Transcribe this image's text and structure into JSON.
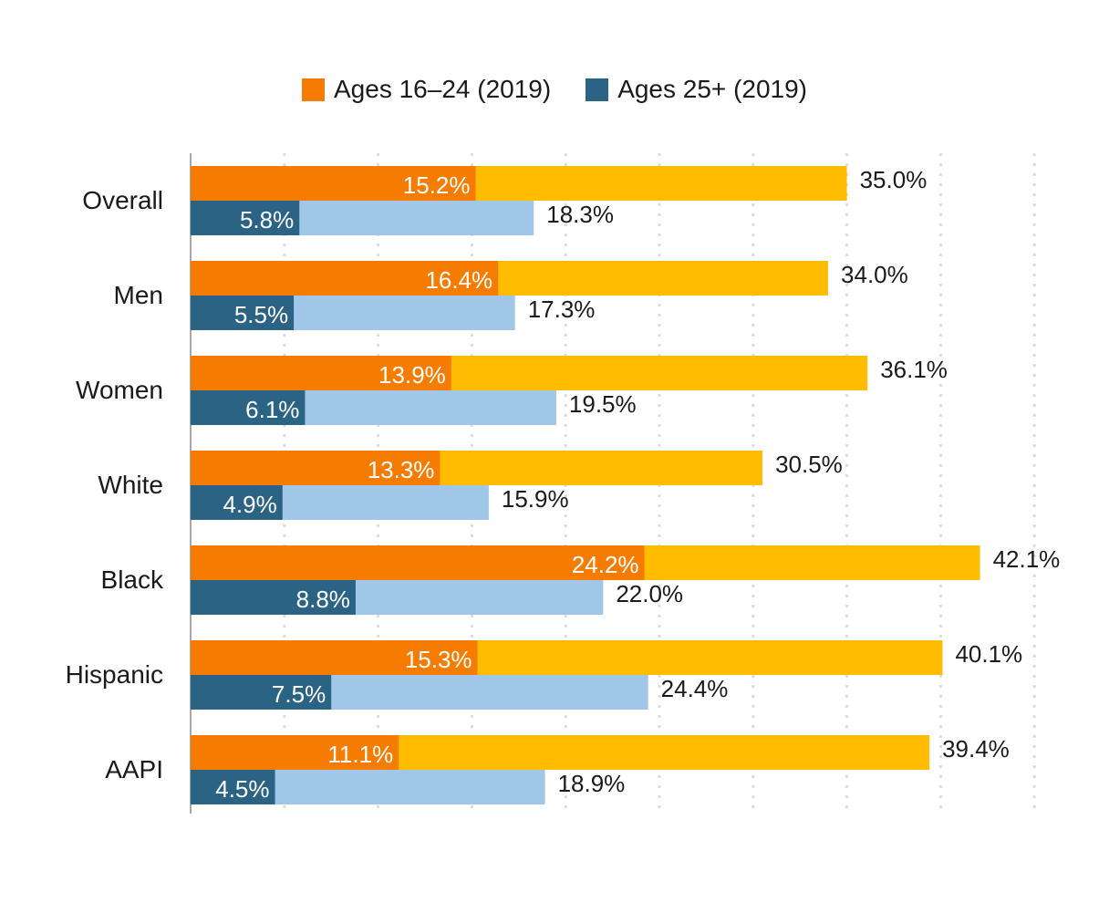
{
  "chart_data": {
    "type": "bar",
    "orientation": "horizontal",
    "categories": [
      "Overall",
      "Men",
      "Women",
      "White",
      "Black",
      "Hispanic",
      "AAPI"
    ],
    "series": [
      {
        "name": "Ages 16–24 (2019)",
        "color": "#f57c00",
        "values": [
          15.2,
          16.4,
          13.9,
          13.3,
          24.2,
          15.3,
          11.1
        ],
        "labels": [
          "15.2%",
          "16.4%",
          "13.9%",
          "13.3%",
          "24.2%",
          "15.3%",
          "11.1%"
        ]
      },
      {
        "color": "#ffbc00",
        "values": [
          35.0,
          34.0,
          36.1,
          30.5,
          42.1,
          40.1,
          39.4
        ],
        "labels": [
          "35.0%",
          "34.0%",
          "36.1%",
          "30.5%",
          "42.1%",
          "40.1%",
          "39.4%"
        ]
      },
      {
        "name": "Ages 25+ (2019)",
        "color": "#2a6384",
        "values": [
          5.8,
          5.5,
          6.1,
          4.9,
          8.8,
          7.5,
          4.5
        ],
        "labels": [
          "5.8%",
          "5.5%",
          "6.1%",
          "4.9%",
          "8.8%",
          "7.5%",
          "4.5%"
        ]
      },
      {
        "color": "#a0c6e8",
        "values": [
          18.3,
          17.3,
          19.5,
          15.9,
          22.0,
          24.4,
          18.9
        ],
        "labels": [
          "18.3%",
          "17.3%",
          "19.5%",
          "15.9%",
          "22.0%",
          "24.4%",
          "18.9%"
        ]
      }
    ],
    "xlim": [
      0,
      45
    ],
    "gridlines": [
      5,
      10,
      15,
      20,
      25,
      30,
      35,
      40,
      45
    ],
    "grid": "dotted-vertical",
    "legend_position": "top-center"
  }
}
